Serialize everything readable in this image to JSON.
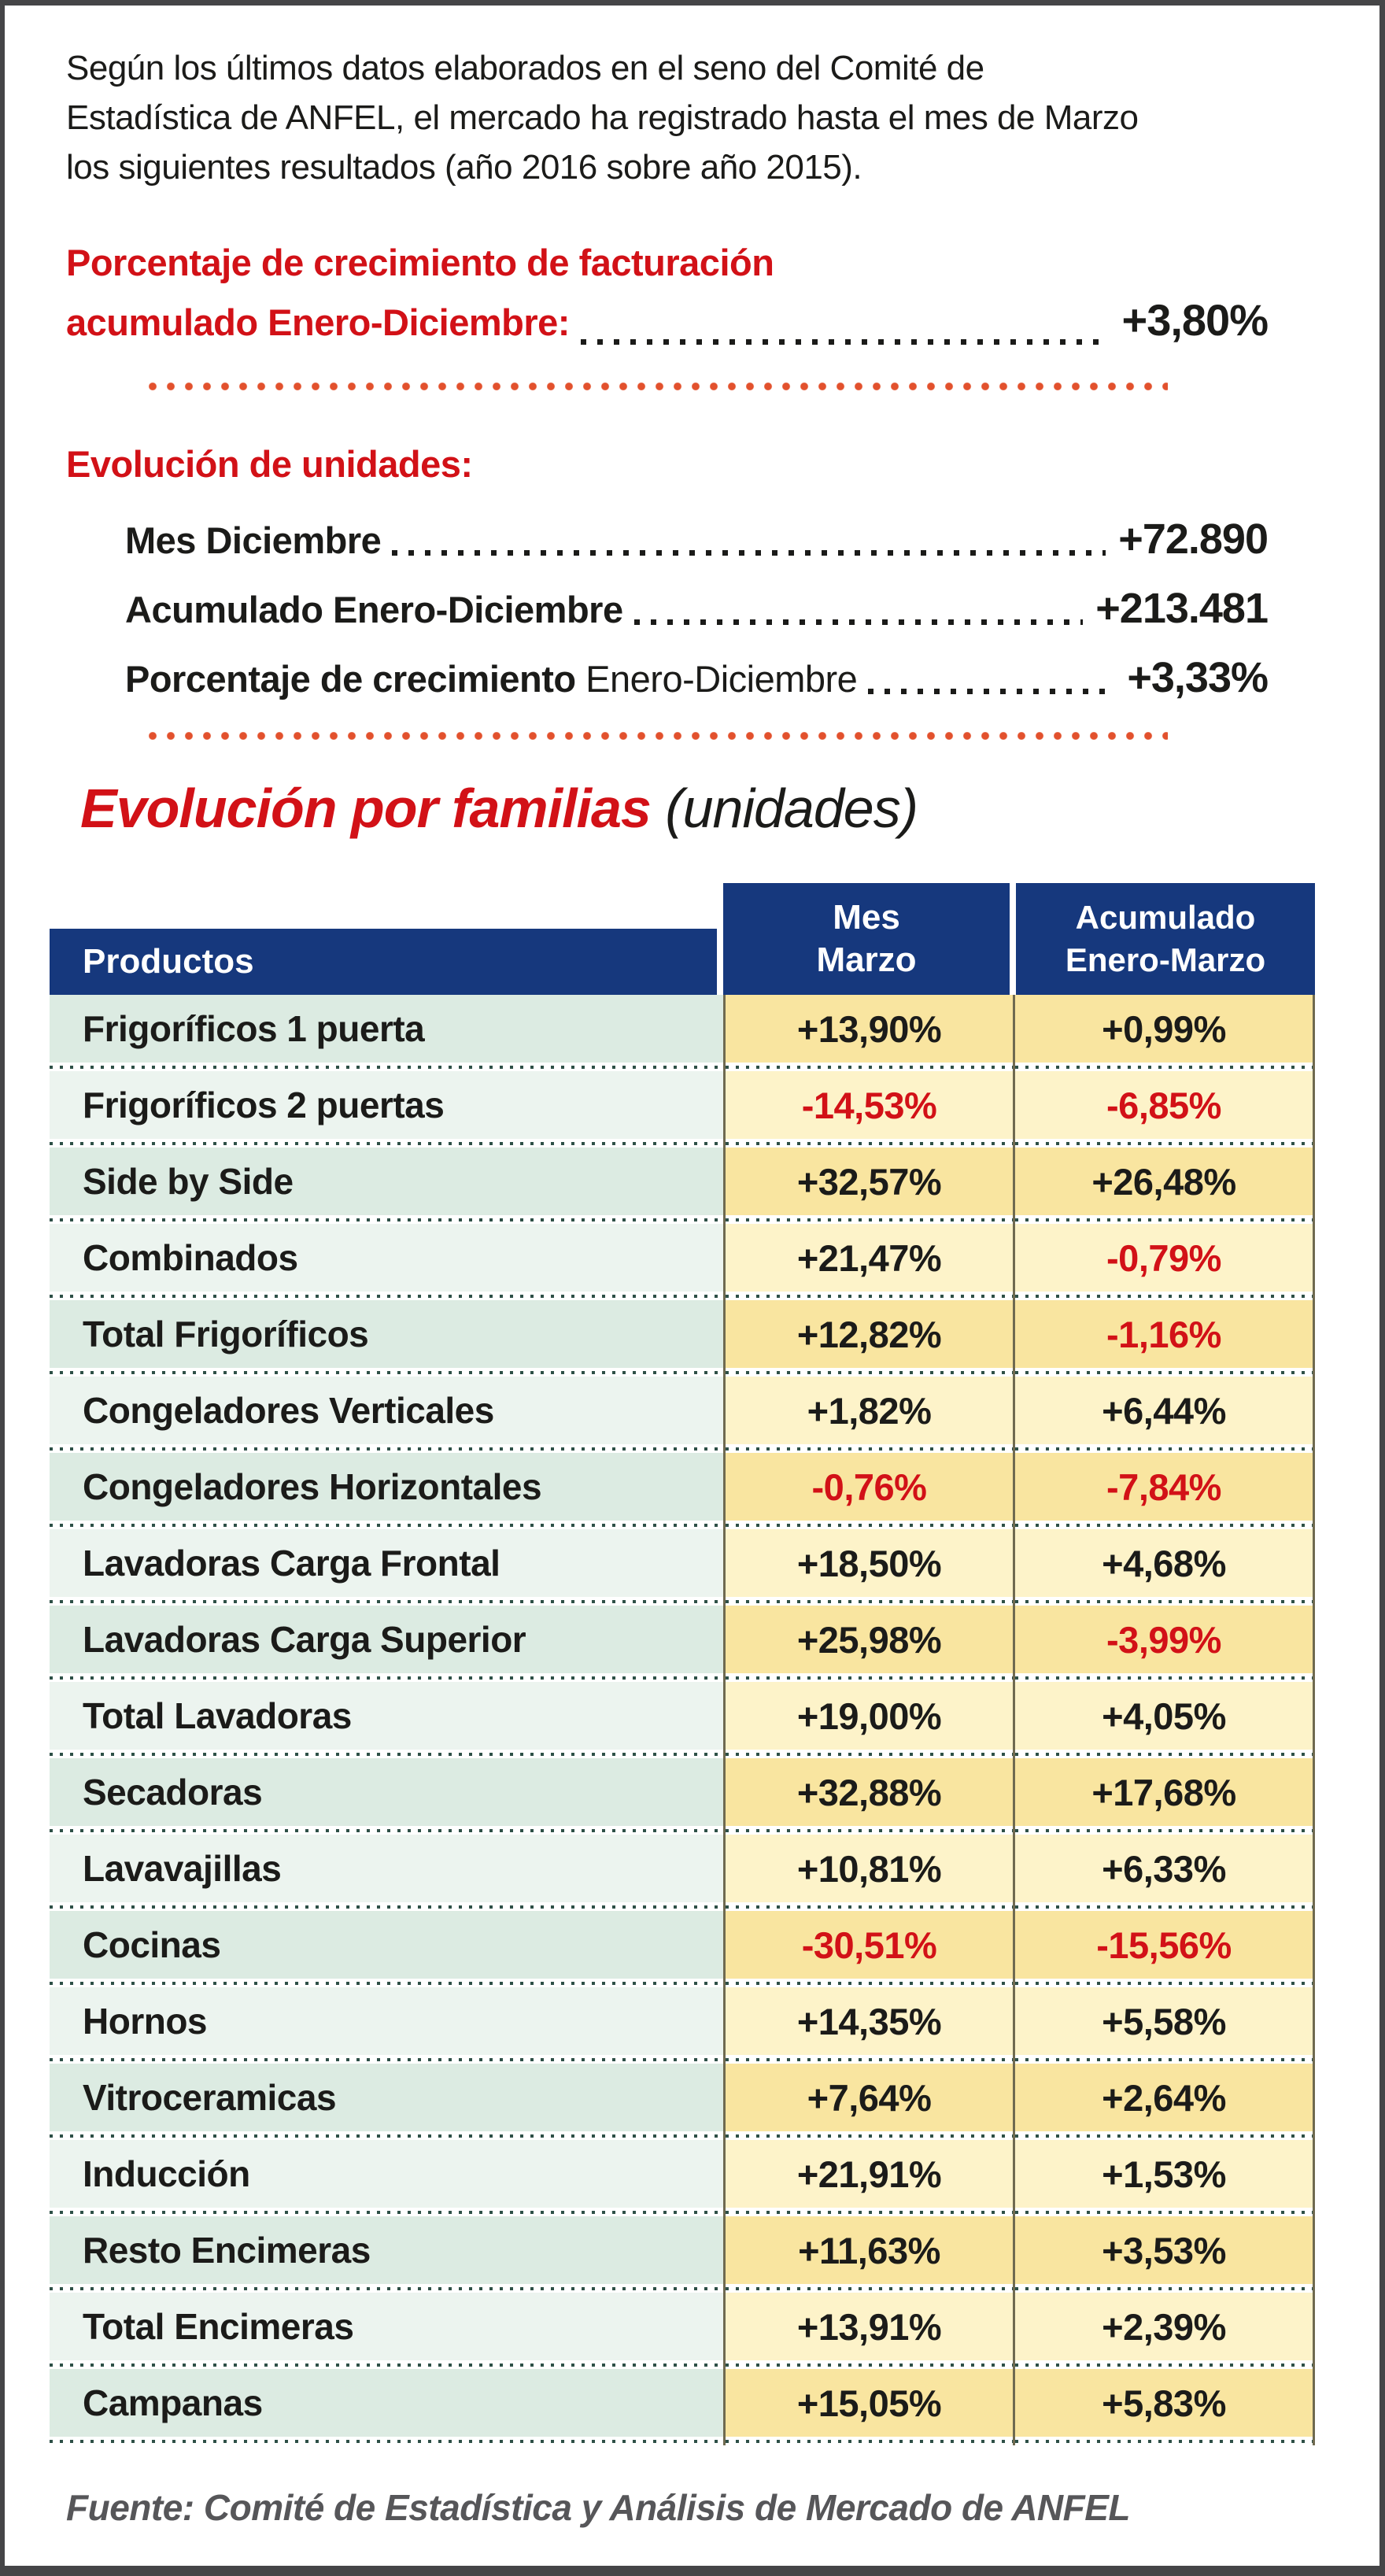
{
  "document": {
    "intro_lines": [
      "Según los últimos datos elaborados en el seno del Comité de",
      "Estadística de ANFEL, el mercado ha registrado hasta el mes de Marzo",
      "los siguientes resultados (año 2016 sobre año 2015)."
    ],
    "billing": {
      "heading": "Porcentaje de crecimiento de facturación",
      "heading2": "acumulado Enero-Diciembre:",
      "value": "+3,80%"
    },
    "units": {
      "heading": "Evolución de unidades:",
      "rows": [
        {
          "bold": "Mes Diciembre",
          "regular": "",
          "value": "+72.890"
        },
        {
          "bold": "Acumulado Enero-Diciembre",
          "regular": "",
          "value": "+213.481"
        },
        {
          "bold": "Porcentaje de crecimiento",
          "regular": " Enero-Diciembre",
          "value": "+3,33%"
        }
      ]
    },
    "familias_title": {
      "red": "Evolución por familias",
      "black": " (unidades)"
    },
    "footer": "Fuente: Comité de Estadística y Análisis de Mercado de ANFEL"
  },
  "table": {
    "col_headers": {
      "productos": "Productos",
      "mes": [
        "Mes",
        "Marzo"
      ],
      "acumulado": [
        "Acumulado",
        "Enero-Marzo"
      ]
    },
    "rows": [
      {
        "producto": "Frigoríficos 1 puerta",
        "mes": "+13,90%",
        "acumulado": "+0,99%"
      },
      {
        "producto": "Frigoríficos 2 puertas",
        "mes": "-14,53%",
        "acumulado": "-6,85%"
      },
      {
        "producto": "Side by Side",
        "mes": "+32,57%",
        "acumulado": "+26,48%"
      },
      {
        "producto": "Combinados",
        "mes": "+21,47%",
        "acumulado": "-0,79%"
      },
      {
        "producto": "Total Frigoríficos",
        "mes": "+12,82%",
        "acumulado": "-1,16%"
      },
      {
        "producto": "Congeladores Verticales",
        "mes": "+1,82%",
        "acumulado": "+6,44%"
      },
      {
        "producto": "Congeladores Horizontales",
        "mes": "-0,76%",
        "acumulado": "-7,84%"
      },
      {
        "producto": "Lavadoras Carga Frontal",
        "mes": "+18,50%",
        "acumulado": "+4,68%"
      },
      {
        "producto": "Lavadoras Carga Superior",
        "mes": "+25,98%",
        "acumulado": "-3,99%"
      },
      {
        "producto": "Total Lavadoras",
        "mes": "+19,00%",
        "acumulado": "+4,05%"
      },
      {
        "producto": "Secadoras",
        "mes": "+32,88%",
        "acumulado": "+17,68%"
      },
      {
        "producto": "Lavavajillas",
        "mes": "+10,81%",
        "acumulado": "+6,33%"
      },
      {
        "producto": "Cocinas",
        "mes": "-30,51%",
        "acumulado": "-15,56%"
      },
      {
        "producto": "Hornos",
        "mes": "+14,35%",
        "acumulado": "+5,58%"
      },
      {
        "producto": "Vitroceramicas",
        "mes": "+7,64%",
        "acumulado": "+2,64%"
      },
      {
        "producto": "Inducción",
        "mes": "+21,91%",
        "acumulado": "+1,53%"
      },
      {
        "producto": "Resto Encimeras",
        "mes": "+11,63%",
        "acumulado": "+3,53%"
      },
      {
        "producto": "Total Encimeras",
        "mes": "+13,91%",
        "acumulado": "+2,39%"
      },
      {
        "producto": "Campanas",
        "mes": "+15,05%",
        "acumulado": "+5,83%"
      }
    ]
  },
  "colors": {
    "navy": "#16387d",
    "red": "#d21117",
    "text": "#1b1b19",
    "orange_dot": "#e2512d",
    "green_dark": "#dcebe2",
    "green_light": "#ecf4ef",
    "yellow_dark": "#f9e5a0",
    "yellow_light": "#fdf3c9",
    "line_olive": "#6f6a50",
    "dot_teal": "#2e5047",
    "footer_gray": "#565659",
    "border_gray": "#454547"
  }
}
